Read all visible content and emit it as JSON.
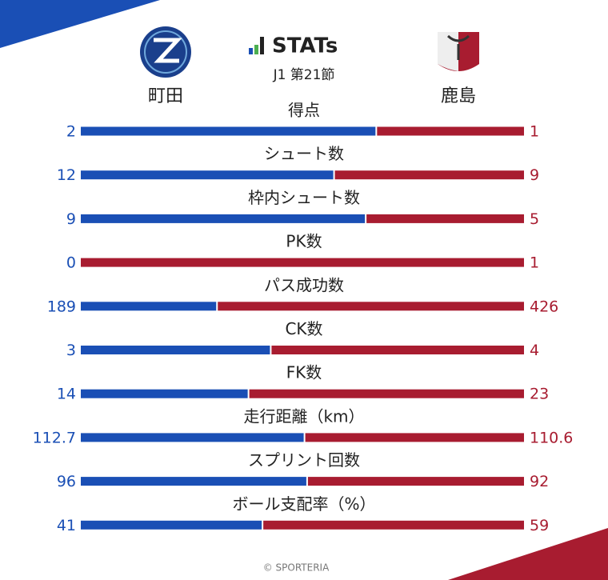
{
  "chart_data": {
    "type": "bar",
    "title": "STATs",
    "subtitle": "J1 第21節",
    "categories": [
      "得点",
      "シュート数",
      "枠内シュート数",
      "PK数",
      "パス成功数",
      "CK数",
      "FK数",
      "走行距離（km）",
      "スプリント回数",
      "ボール支配率（%）"
    ],
    "series": [
      {
        "name": "町田",
        "color": "#1a4fb5",
        "values": [
          2,
          12,
          9,
          0,
          189,
          3,
          14,
          112.7,
          96,
          41
        ]
      },
      {
        "name": "鹿島",
        "color": "#a81c30",
        "values": [
          1,
          9,
          5,
          1,
          426,
          4,
          23,
          110.6,
          92,
          59
        ]
      }
    ],
    "source": "© SPORTERIA"
  }
}
